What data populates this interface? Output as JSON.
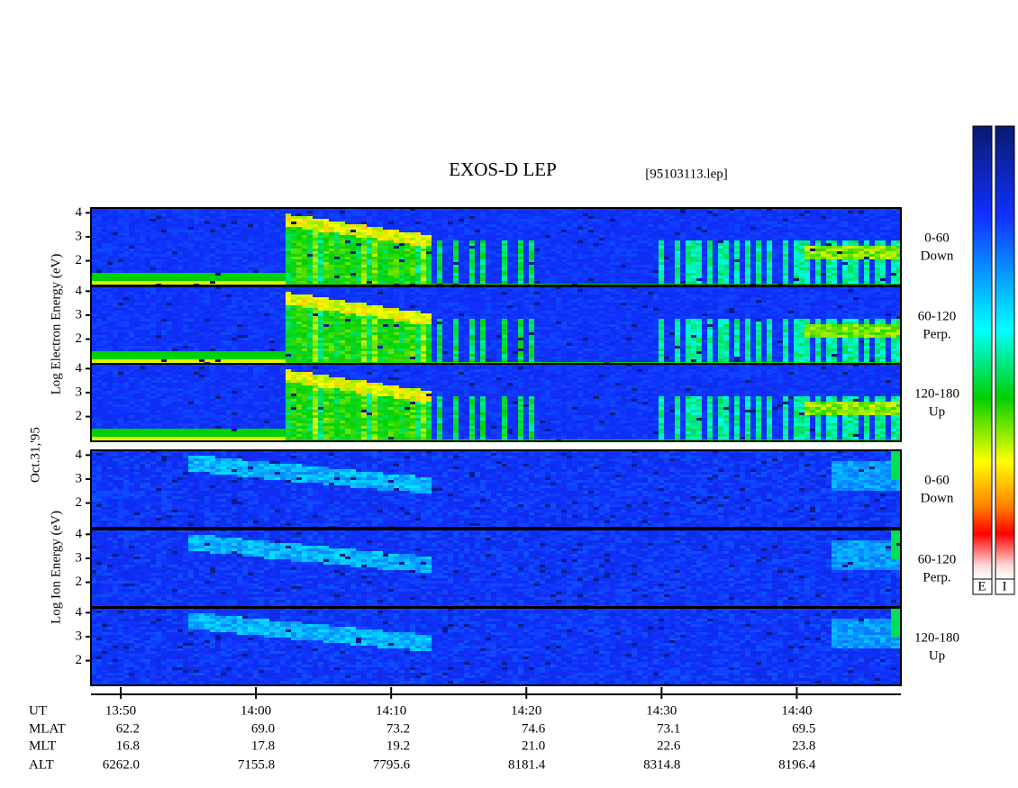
{
  "chart_data": {
    "type": "spectrogram",
    "title": "EXOS-D LEP",
    "file_label": "[95103113.lep]",
    "y_labels": [
      "Log  Electron  Energy (eV)",
      "Oct.31,'95",
      "Log  Ion  Energy (eV)"
    ],
    "xlim": [
      827.8,
      887.7
    ],
    "xticks": [
      {
        "value": 830,
        "label": "13:50"
      },
      {
        "value": 840,
        "label": "14:00"
      },
      {
        "value": 850,
        "label": "14:10"
      },
      {
        "value": 860,
        "label": "14:20"
      },
      {
        "value": 870,
        "label": "14:30"
      },
      {
        "value": 880,
        "label": "14:40"
      }
    ],
    "x_label": "UT",
    "panels": [
      {
        "species": "electron",
        "side_label": [
          "0-60",
          "Down"
        ],
        "ylim": [
          0.97,
          4.2
        ],
        "yticks": [
          2,
          3,
          4
        ]
      },
      {
        "species": "electron",
        "side_label": [
          "60-120",
          "Perp."
        ],
        "ylim": [
          0.97,
          4.2
        ],
        "yticks": [
          2,
          3,
          4
        ]
      },
      {
        "species": "electron",
        "side_label": [
          "120-180",
          "Up"
        ],
        "ylim": [
          0.97,
          4.2
        ],
        "yticks": [
          2,
          3,
          4
        ]
      },
      {
        "species": "ion",
        "side_label": [
          "0-60",
          "Down"
        ],
        "ylim": [
          0.97,
          4.2
        ],
        "yticks": [
          2,
          3,
          4
        ]
      },
      {
        "species": "ion",
        "side_label": [
          "60-120",
          "Perp."
        ],
        "ylim": [
          0.97,
          4.2
        ],
        "yticks": [
          2,
          3,
          4
        ]
      },
      {
        "species": "ion",
        "side_label": [
          "120-180",
          "Up"
        ],
        "ylim": [
          0.97,
          4.2
        ],
        "yticks": [
          2,
          3,
          4
        ]
      }
    ],
    "ephemeris": [
      {
        "name": "MLAT",
        "values": [
          "62.2",
          "69.0",
          "73.2",
          "74.6",
          "73.1",
          "69.5"
        ]
      },
      {
        "name": "MLT",
        "values": [
          "16.8",
          "17.8",
          "19.2",
          "21.0",
          "22.6",
          "23.8"
        ]
      },
      {
        "name": "ALT",
        "values": [
          "6262.0",
          "7155.8",
          "7795.6",
          "8181.4",
          "8314.8",
          "8196.4"
        ]
      }
    ],
    "colorbar_labels": [
      "E",
      "I"
    ]
  }
}
